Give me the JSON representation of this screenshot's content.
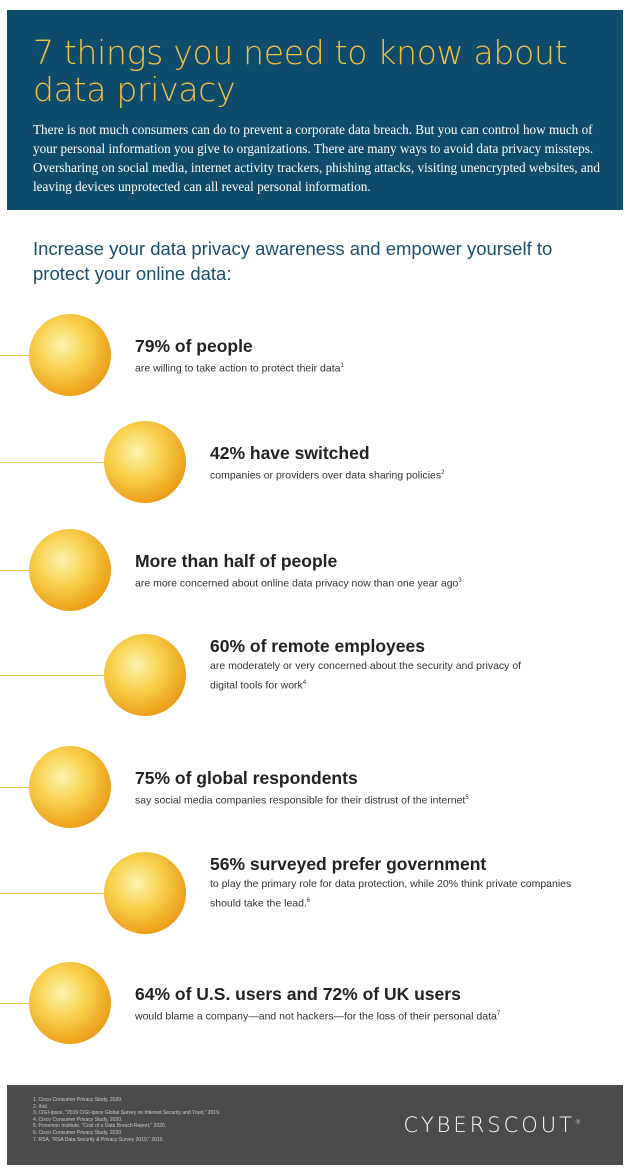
{
  "header": {
    "title": "7 things you need to know about data privacy",
    "body": "There is not much consumers can do to prevent a corporate data breach. But you can control how much of your personal information you give to organizations. There are many ways to avoid data privacy missteps. Oversharing on social media, internet activity trackers, phishing attacks, visiting unencrypted websites, and leaving devices unprotected can all reveal personal information."
  },
  "intro": "Increase your data privacy awareness and empower yourself to protect your online data:",
  "items": [
    {
      "heading": "79% of people",
      "text": "are willing to take action to protect their data",
      "note": "1"
    },
    {
      "heading": "42% have switched",
      "text": "companies or providers over data sharing policies",
      "note": "2"
    },
    {
      "heading": "More than half of people",
      "text": "are more concerned about online data privacy now than one year ago",
      "note": "3"
    },
    {
      "heading": "60% of remote employees",
      "text": "are moderately or very concerned about the security and privacy of digital tools for work",
      "note": "4"
    },
    {
      "heading": "75% of global respondents",
      "text": "say social media companies responsible for their distrust of the internet",
      "note": "5"
    },
    {
      "heading": "56% surveyed prefer government",
      "text": "to play the primary role for data protection, while 20% think private companies should take the lead.",
      "note": "6"
    },
    {
      "heading": "64% of U.S. users and 72% of UK users",
      "text": "would blame a company—and not hackers—for the loss of their personal data",
      "note": "7"
    }
  ],
  "footer": {
    "footnotes": [
      "1. Cisco Consumer Privacy Study, 2020.",
      "2. Ibid.",
      "3. CIGI-Ipsos, \"2019 CIGI-Ipsos Global Survey on Internet Security and Trust,\" 2019.",
      "4. Cisco Consumer Privacy Study, 2020.",
      "5. Ponemon Institute, \"Cost of a Data Breach Report,\" 2020.",
      "6. Cisco Consumer Privacy Study, 2020.",
      "7. RSA, \"RSA Data Security & Privacy Survey 2019,\" 2019."
    ],
    "logo": "CYBERSCOUT",
    "logo_mark": "®"
  }
}
